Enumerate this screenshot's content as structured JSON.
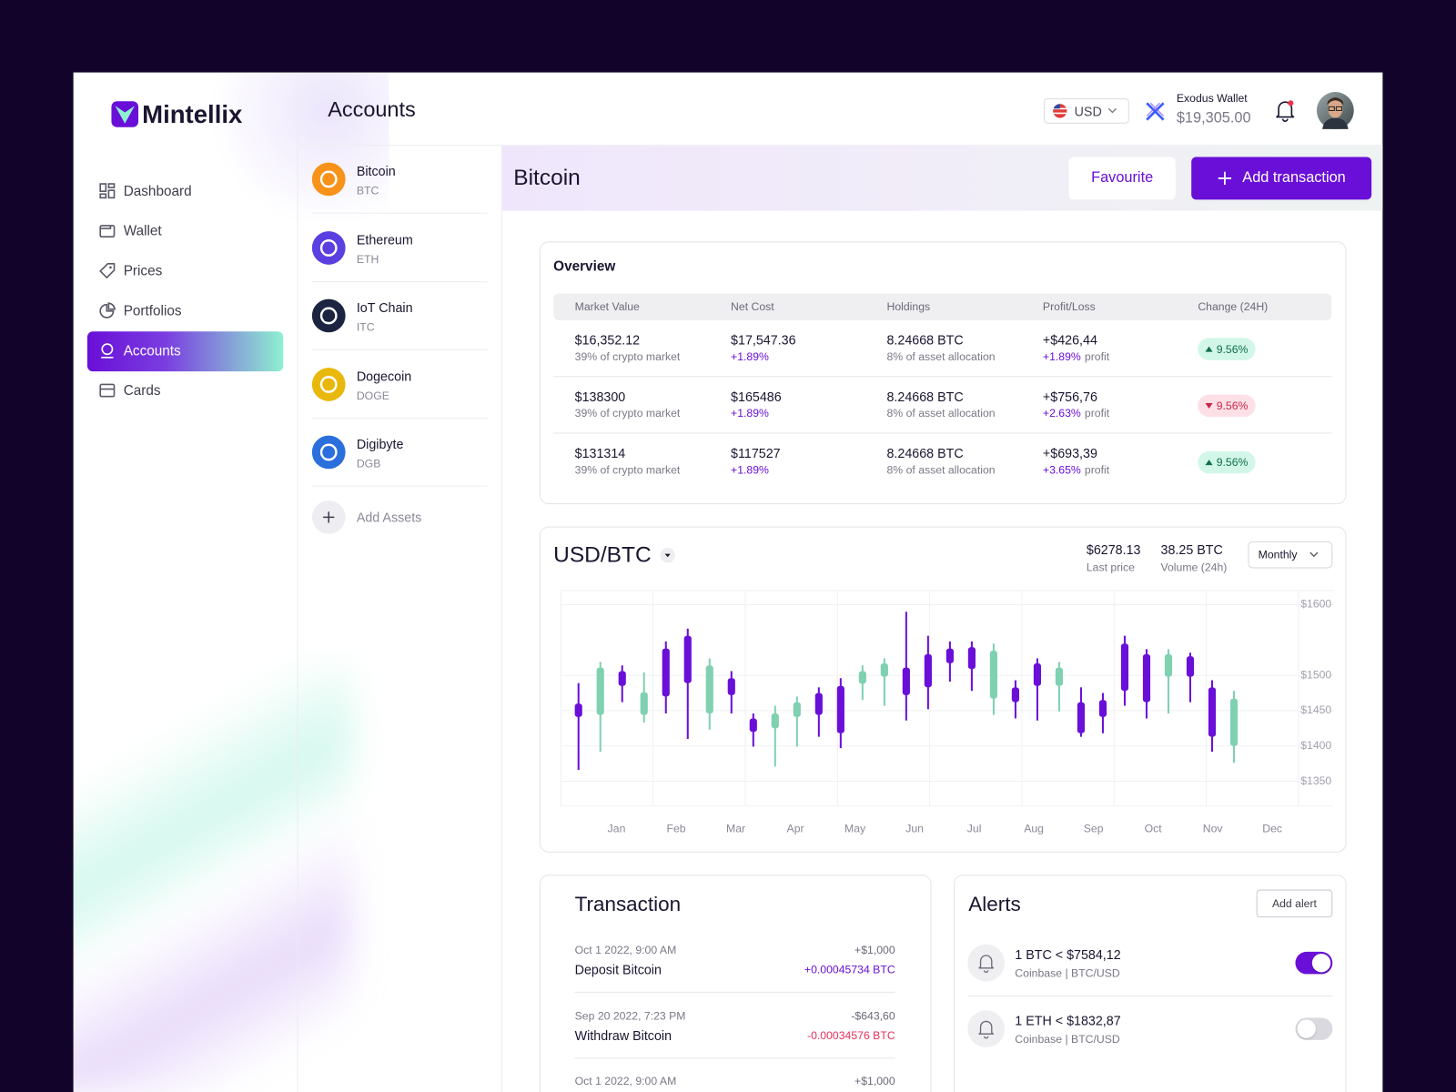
{
  "brand": "Mintellix",
  "nav": [
    {
      "label": "Dashboard"
    },
    {
      "label": "Wallet"
    },
    {
      "label": "Prices"
    },
    {
      "label": "Portfolios"
    },
    {
      "label": "Accounts",
      "active": true
    },
    {
      "label": "Cards"
    }
  ],
  "header": {
    "title": "Accounts",
    "currency": "USD",
    "wallet_name": "Exodus Wallet",
    "wallet_balance": "$19,305.00"
  },
  "assets": {
    "items": [
      {
        "name": "Bitcoin",
        "symbol": "BTC",
        "color": "#f7931a"
      },
      {
        "name": "Ethereum",
        "symbol": "ETH",
        "color": "#5b3fe0"
      },
      {
        "name": "IoT Chain",
        "symbol": "ITC",
        "color": "#1b2440"
      },
      {
        "name": "Dogecoin",
        "symbol": "DOGE",
        "color": "#e9b80c"
      },
      {
        "name": "Digibyte",
        "symbol": "DGB",
        "color": "#2a6fdc"
      }
    ],
    "add_label": "Add Assets"
  },
  "coin": {
    "name": "Bitcoin",
    "favourite_button": "Favourite",
    "add_button": "Add transaction"
  },
  "overview": {
    "title": "Overview",
    "columns": [
      "Market Value",
      "Net Cost",
      "Holdings",
      "Profit/Loss",
      "Change (24H)"
    ],
    "rows": [
      {
        "market_value": "$16,352.12",
        "market_share": "39% of crypto market",
        "net_cost": "$17,547.36",
        "net_cost_change": "+1.89%",
        "holdings": "8.24668 BTC",
        "allocation": "8% of asset allocation",
        "profit_loss": "+$426,44",
        "profit_pct": "+1.89%",
        "profit_label": "profit",
        "change": "9.56%",
        "direction": "up"
      },
      {
        "market_value": "$138300",
        "market_share": "39% of crypto market",
        "net_cost": "$165486",
        "net_cost_change": "+1.89%",
        "holdings": "8.24668 BTC",
        "allocation": "8% of asset allocation",
        "profit_loss": "+$756,76",
        "profit_pct": "+2.63%",
        "profit_label": "profit",
        "change": "9.56%",
        "direction": "down"
      },
      {
        "market_value": "$131314",
        "market_share": "39% of crypto market",
        "net_cost": "$117527",
        "net_cost_change": "+1.89%",
        "holdings": "8.24668 BTC",
        "allocation": "8% of asset allocation",
        "profit_loss": "+$693,39",
        "profit_pct": "+3.65%",
        "profit_label": "profit",
        "change": "9.56%",
        "direction": "up"
      }
    ]
  },
  "market": {
    "pair": "USD/BTC",
    "last_price": "$6278.13",
    "last_price_label": "Last price",
    "volume": "38.25 BTC",
    "volume_label": "Volume (24h)",
    "period": "Monthly"
  },
  "chart_data": {
    "type": "candlestick",
    "x_labels": [
      "Jan",
      "Feb",
      "Mar",
      "Apr",
      "May",
      "Jun",
      "Jul",
      "Aug",
      "Sep",
      "Oct",
      "Nov",
      "Dec"
    ],
    "open": [
      1460,
      1444,
      1506,
      1444,
      1538,
      1556,
      1446,
      1496,
      1439,
      1425,
      1441,
      1475,
      1485,
      1488,
      1498,
      1511,
      1530,
      1538,
      1540,
      1467,
      1483,
      1517,
      1485,
      1462,
      1465,
      1545,
      1530,
      1498,
      1527,
      1483,
      1400
    ],
    "high": [
      1489,
      1519,
      1514,
      1504,
      1548,
      1566,
      1524,
      1506,
      1446,
      1457,
      1470,
      1483,
      1496,
      1514,
      1524,
      1590,
      1556,
      1548,
      1548,
      1545,
      1493,
      1524,
      1519,
      1483,
      1475,
      1556,
      1537,
      1537,
      1532,
      1493,
      1478
    ],
    "low": [
      1366,
      1392,
      1462,
      1433,
      1446,
      1410,
      1423,
      1446,
      1399,
      1371,
      1399,
      1413,
      1397,
      1465,
      1457,
      1436,
      1452,
      1491,
      1478,
      1444,
      1439,
      1436,
      1449,
      1413,
      1418,
      1457,
      1439,
      1446,
      1462,
      1392,
      1376
    ],
    "close": [
      1441,
      1511,
      1485,
      1476,
      1470,
      1489,
      1514,
      1472,
      1420,
      1446,
      1462,
      1444,
      1418,
      1506,
      1517,
      1472,
      1483,
      1517,
      1509,
      1535,
      1462,
      1485,
      1511,
      1418,
      1441,
      1478,
      1462,
      1530,
      1498,
      1413,
      1467
    ],
    "up_color": "#7fd1b0",
    "down_color": "#6a0fd8",
    "ylim": [
      1315,
      1620
    ],
    "yticks": [
      {
        "value": 1350,
        "label": "$1350"
      },
      {
        "value": 1400,
        "label": "$1400"
      },
      {
        "value": 1450,
        "label": "$1450"
      },
      {
        "value": 1500,
        "label": "$1500"
      },
      {
        "value": 1600,
        "label": "$1600"
      }
    ],
    "grid": true
  },
  "transactions": {
    "title": "Transaction",
    "items": [
      {
        "date": "Oct 1 2022, 9:00 AM",
        "title": "Deposit Bitcoin",
        "amount": "+$1,000",
        "btc": "+0.00045734 BTC",
        "direction": "in"
      },
      {
        "date": "Sep 20 2022, 7:23 PM",
        "title": "Withdraw Bitcoin",
        "amount": "-$643,60",
        "btc": "-0.00034576 BTC",
        "direction": "out"
      },
      {
        "date": "Oct 1 2022, 9:00 AM",
        "amount": "+$1,000",
        "direction": "in"
      }
    ]
  },
  "alerts": {
    "title": "Alerts",
    "add_button": "Add alert",
    "items": [
      {
        "condition": "1 BTC < $7584,12",
        "source": "Coinbase | BTC/USD",
        "enabled": true
      },
      {
        "condition": "1 ETH < $1832,87",
        "source": "Coinbase | BTC/USD",
        "enabled": false
      }
    ]
  }
}
